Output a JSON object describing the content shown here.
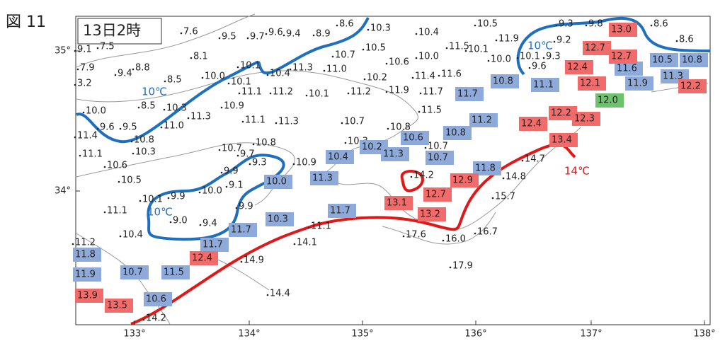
{
  "header": {
    "figure": "図 11",
    "time": "13日2時"
  },
  "axes": {
    "lat": [
      "35°",
      "34°"
    ],
    "lon": [
      "133°",
      "134°",
      "135°",
      "136°",
      "137°",
      "138°"
    ]
  },
  "contours": [
    {
      "label": "10℃",
      "kind": "blue"
    },
    {
      "label": "10℃",
      "kind": "blue"
    },
    {
      "label": "10℃",
      "kind": "blue"
    },
    {
      "label": "14℃",
      "kind": "red"
    }
  ],
  "stations": [
    {
      "text": "7.6",
      "kind": "plain"
    },
    {
      "text": "9.5",
      "kind": "plain"
    },
    {
      "text": "9.7",
      "kind": "plain"
    },
    {
      "text": "9.6",
      "kind": "plain"
    },
    {
      "text": "9.4",
      "kind": "plain"
    },
    {
      "text": "8.9",
      "kind": "plain"
    },
    {
      "text": "8.6",
      "kind": "plain"
    },
    {
      "text": "10.3",
      "kind": "plain"
    },
    {
      "text": "10.4",
      "kind": "plain"
    },
    {
      "text": "10.5",
      "kind": "plain"
    },
    {
      "text": "9.3",
      "kind": "plain"
    },
    {
      "text": "9.8",
      "kind": "plain"
    },
    {
      "text": "8.6",
      "kind": "plain"
    },
    {
      "text": "8.6",
      "kind": "plain"
    },
    {
      "text": "11.9",
      "kind": "plain"
    },
    {
      "text": "9.2",
      "kind": "plain"
    },
    {
      "text": "9.1",
      "kind": "plain"
    },
    {
      "text": "7.5",
      "kind": "plain"
    },
    {
      "text": "8.1",
      "kind": "plain"
    },
    {
      "text": "10.7",
      "kind": "plain"
    },
    {
      "text": "10.5",
      "kind": "plain"
    },
    {
      "text": "10.6",
      "kind": "plain"
    },
    {
      "text": "10.0",
      "kind": "plain"
    },
    {
      "text": "11.5",
      "kind": "plain"
    },
    {
      "text": "10.1",
      "kind": "plain"
    },
    {
      "text": "10.0",
      "kind": "plain"
    },
    {
      "text": "10.1",
      "kind": "plain"
    },
    {
      "text": "9.3",
      "kind": "plain"
    },
    {
      "text": "7.9",
      "kind": "plain"
    },
    {
      "text": "9.4",
      "kind": "plain"
    },
    {
      "text": "8.8",
      "kind": "plain"
    },
    {
      "text": "10.1",
      "kind": "plain"
    },
    {
      "text": "8.5",
      "kind": "plain"
    },
    {
      "text": "10.0",
      "kind": "plain"
    },
    {
      "text": "11.3",
      "kind": "plain"
    },
    {
      "text": "11.0",
      "kind": "plain"
    },
    {
      "text": "10.4",
      "kind": "plain"
    },
    {
      "text": "10.1",
      "kind": "plain"
    },
    {
      "text": "10.2",
      "kind": "plain"
    },
    {
      "text": "11.4",
      "kind": "plain"
    },
    {
      "text": "11.6",
      "kind": "plain"
    },
    {
      "text": "9.6",
      "kind": "plain"
    },
    {
      "text": "3.2",
      "kind": "plain"
    },
    {
      "text": "11.1",
      "kind": "plain"
    },
    {
      "text": "11.2",
      "kind": "plain"
    },
    {
      "text": "10.1",
      "kind": "plain"
    },
    {
      "text": "11.2",
      "kind": "plain"
    },
    {
      "text": "11.9",
      "kind": "plain"
    },
    {
      "text": "11.7",
      "kind": "plain"
    },
    {
      "text": "8.5",
      "kind": "plain"
    },
    {
      "text": "10.3",
      "kind": "plain"
    },
    {
      "text": "10.9",
      "kind": "plain"
    },
    {
      "text": "11.5",
      "kind": "plain"
    },
    {
      "text": "10.0",
      "kind": "plain"
    },
    {
      "text": "11.0",
      "kind": "plain"
    },
    {
      "text": "11.3",
      "kind": "plain"
    },
    {
      "text": "11.1",
      "kind": "plain"
    },
    {
      "text": "11.3",
      "kind": "plain"
    },
    {
      "text": "10.7",
      "kind": "plain"
    },
    {
      "text": "10.8",
      "kind": "plain"
    },
    {
      "text": "9.6",
      "kind": "plain"
    },
    {
      "text": "9.5",
      "kind": "plain"
    },
    {
      "text": "11.4",
      "kind": "plain"
    },
    {
      "text": "10.8",
      "kind": "plain"
    },
    {
      "text": "10.3",
      "kind": "plain"
    },
    {
      "text": "10.7",
      "kind": "plain"
    },
    {
      "text": "10.8",
      "kind": "plain"
    },
    {
      "text": "10.3",
      "kind": "plain"
    },
    {
      "text": "11.1",
      "kind": "plain"
    },
    {
      "text": "10.7",
      "kind": "plain"
    },
    {
      "text": "9.7",
      "kind": "plain"
    },
    {
      "text": "9.3",
      "kind": "plain"
    },
    {
      "text": "10.9",
      "kind": "plain"
    },
    {
      "text": "10.6",
      "kind": "plain"
    },
    {
      "text": "9.9",
      "kind": "plain"
    },
    {
      "text": "14.2",
      "kind": "plain"
    },
    {
      "text": "14.8",
      "kind": "plain"
    },
    {
      "text": "10.5",
      "kind": "plain"
    },
    {
      "text": "9.1",
      "kind": "plain"
    },
    {
      "text": "10.0",
      "kind": "plain"
    },
    {
      "text": "10.1",
      "kind": "plain"
    },
    {
      "text": "9.9",
      "kind": "plain"
    },
    {
      "text": "15.7",
      "kind": "plain"
    },
    {
      "text": "11.1",
      "kind": "plain"
    },
    {
      "text": "9.9",
      "kind": "plain"
    },
    {
      "text": "9.0",
      "kind": "plain"
    },
    {
      "text": "9.4",
      "kind": "plain"
    },
    {
      "text": "10.4",
      "kind": "plain"
    },
    {
      "text": "11.1",
      "kind": "plain"
    },
    {
      "text": "17.6",
      "kind": "plain"
    },
    {
      "text": "16.0",
      "kind": "plain"
    },
    {
      "text": "16.7",
      "kind": "plain"
    },
    {
      "text": "11.2",
      "kind": "plain"
    },
    {
      "text": "14.1",
      "kind": "plain"
    },
    {
      "text": "14.9",
      "kind": "plain"
    },
    {
      "text": "17.9",
      "kind": "plain"
    },
    {
      "text": "14.4",
      "kind": "plain"
    },
    {
      "text": "14.2",
      "kind": "plain"
    },
    {
      "text": "14.7",
      "kind": "plain"
    },
    {
      "text": "11.7",
      "kind": "blue"
    },
    {
      "text": "10.8",
      "kind": "blue"
    },
    {
      "text": "11.1",
      "kind": "blue"
    },
    {
      "text": "10.5",
      "kind": "blue"
    },
    {
      "text": "10.8",
      "kind": "blue"
    },
    {
      "text": "11.6",
      "kind": "blue"
    },
    {
      "text": "11.3",
      "kind": "blue"
    },
    {
      "text": "11.9",
      "kind": "blue"
    },
    {
      "text": "11.2",
      "kind": "blue"
    },
    {
      "text": "10.8",
      "kind": "blue"
    },
    {
      "text": "10.6",
      "kind": "blue"
    },
    {
      "text": "10.2",
      "kind": "blue"
    },
    {
      "text": "10.4",
      "kind": "blue"
    },
    {
      "text": "11.3",
      "kind": "blue"
    },
    {
      "text": "10.7",
      "kind": "blue"
    },
    {
      "text": "10.0",
      "kind": "blue"
    },
    {
      "text": "11.3",
      "kind": "blue"
    },
    {
      "text": "11.8",
      "kind": "blue"
    },
    {
      "text": "11.7",
      "kind": "blue"
    },
    {
      "text": "10.3",
      "kind": "blue"
    },
    {
      "text": "11.7",
      "kind": "blue"
    },
    {
      "text": "11.7",
      "kind": "blue"
    },
    {
      "text": "11.8",
      "kind": "blue"
    },
    {
      "text": "11.9",
      "kind": "blue"
    },
    {
      "text": "10.7",
      "kind": "blue"
    },
    {
      "text": "11.5",
      "kind": "blue"
    },
    {
      "text": "10.6",
      "kind": "blue"
    },
    {
      "text": "13.0",
      "kind": "red"
    },
    {
      "text": "12.7",
      "kind": "red"
    },
    {
      "text": "12.7",
      "kind": "red"
    },
    {
      "text": "12.4",
      "kind": "red"
    },
    {
      "text": "12.1",
      "kind": "red"
    },
    {
      "text": "12.2",
      "kind": "red"
    },
    {
      "text": "12.2",
      "kind": "red"
    },
    {
      "text": "12.4",
      "kind": "red"
    },
    {
      "text": "12.3",
      "kind": "red"
    },
    {
      "text": "13.4",
      "kind": "red"
    },
    {
      "text": "12.9",
      "kind": "red"
    },
    {
      "text": "12.7",
      "kind": "red"
    },
    {
      "text": "13.1",
      "kind": "red"
    },
    {
      "text": "13.2",
      "kind": "red"
    },
    {
      "text": "12.4",
      "kind": "red"
    },
    {
      "text": "13.9",
      "kind": "red"
    },
    {
      "text": "13.5",
      "kind": "red"
    },
    {
      "text": "12.0",
      "kind": "green"
    }
  ]
}
